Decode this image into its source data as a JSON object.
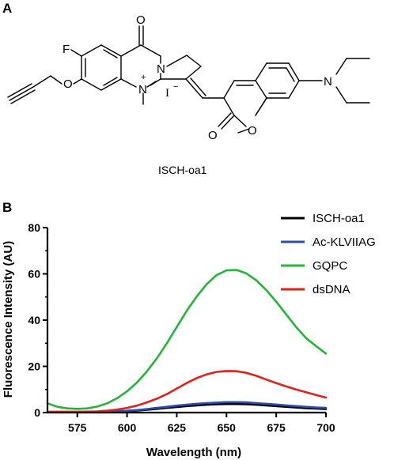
{
  "panel_a": {
    "label": "A",
    "compound_name": "ISCH-oa1",
    "atoms": {
      "carbonyl_o_top": "O",
      "fluorine": "F",
      "ring_n": "N",
      "quaternary_n": "N",
      "charge_plus": "+",
      "iodide": "I",
      "charge_minus": "−",
      "ether_o": "O",
      "coumarin_carbonyl_o": "O",
      "coumarin_ring_o": "O",
      "amine_n": "N"
    }
  },
  "panel_b": {
    "label": "B"
  },
  "chart_data": {
    "type": "line",
    "xlabel": "Wavelength (nm)",
    "ylabel": "Fluorescence Intensity (AU)",
    "xlim": [
      560,
      700
    ],
    "ylim": [
      0,
      80
    ],
    "xticks": [
      575,
      600,
      625,
      650,
      675,
      700
    ],
    "yticks": [
      0,
      20,
      40,
      60,
      80
    ],
    "grid": false,
    "legend": "top-right",
    "x": [
      560,
      565,
      570,
      575,
      580,
      585,
      590,
      595,
      600,
      605,
      610,
      615,
      620,
      625,
      630,
      635,
      640,
      645,
      650,
      655,
      660,
      665,
      670,
      675,
      680,
      685,
      690,
      695,
      700
    ],
    "series": [
      {
        "name": "ISCH-oa1",
        "color": "#000000",
        "values": [
          0.2,
          0.2,
          0.2,
          0.2,
          0.2,
          0.2,
          0.3,
          0.4,
          0.6,
          0.9,
          1.2,
          1.6,
          2.0,
          2.4,
          2.8,
          3.1,
          3.4,
          3.6,
          3.7,
          3.7,
          3.6,
          3.4,
          3.1,
          2.8,
          2.5,
          2.2,
          1.9,
          1.7,
          1.5
        ]
      },
      {
        "name": "Ac-KLVIIAG",
        "color": "#2b4fa8",
        "values": [
          0.3,
          0.3,
          0.3,
          0.3,
          0.3,
          0.3,
          0.4,
          0.6,
          0.8,
          1.1,
          1.5,
          2.0,
          2.5,
          3.0,
          3.4,
          3.8,
          4.1,
          4.3,
          4.5,
          4.5,
          4.4,
          4.1,
          3.8,
          3.5,
          3.1,
          2.8,
          2.5,
          2.2,
          2.0
        ]
      },
      {
        "name": "GQPC",
        "color": "#22b53a",
        "values": [
          4.0,
          2.5,
          1.8,
          1.6,
          1.8,
          2.6,
          4.0,
          6.2,
          9.2,
          13.0,
          17.8,
          23.5,
          30.0,
          37.0,
          44.0,
          50.2,
          55.5,
          59.5,
          61.5,
          61.7,
          60.2,
          57.2,
          53.0,
          48.0,
          42.5,
          37.0,
          32.2,
          28.8,
          25.5
        ]
      },
      {
        "name": "dsDNA",
        "color": "#e0201b",
        "values": [
          0.3,
          0.3,
          0.3,
          0.3,
          0.4,
          0.5,
          0.8,
          1.3,
          2.0,
          3.0,
          4.4,
          6.0,
          8.0,
          10.4,
          12.8,
          14.9,
          16.5,
          17.6,
          18.0,
          17.9,
          17.2,
          15.9,
          14.3,
          12.8,
          11.3,
          10.0,
          8.8,
          7.6,
          6.5
        ]
      }
    ]
  }
}
